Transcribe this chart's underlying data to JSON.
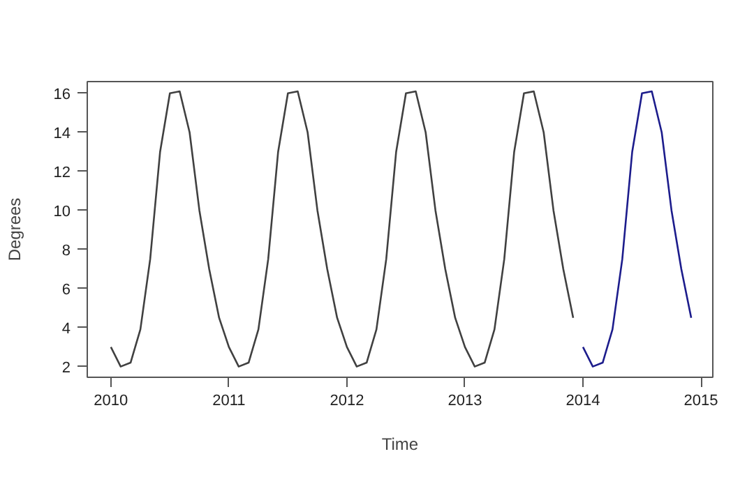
{
  "chart_data": {
    "type": "line",
    "xlabel": "Time",
    "ylabel": "Degrees",
    "xlim": [
      2009.8,
      2015.1
    ],
    "ylim": [
      1.45,
      16.6
    ],
    "xticks": [
      2010,
      2011,
      2012,
      2013,
      2014,
      2015
    ],
    "yticks": [
      2,
      4,
      6,
      8,
      10,
      12,
      14,
      16
    ],
    "line_style": "solid",
    "series": [
      {
        "color": "#404040",
        "x": [
          2010,
          2010.083,
          2010.167,
          2010.25,
          2010.333,
          2010.417,
          2010.5,
          2010.583,
          2010.667,
          2010.75,
          2010.833,
          2010.917,
          2011,
          2011.083,
          2011.167,
          2011.25,
          2011.333,
          2011.417,
          2011.5,
          2011.583,
          2011.667,
          2011.75,
          2011.833,
          2011.917,
          2012,
          2012.083,
          2012.167,
          2012.25,
          2012.333,
          2012.417,
          2012.5,
          2012.583,
          2012.667,
          2012.75,
          2012.833,
          2012.917,
          2013,
          2013.083,
          2013.167,
          2013.25,
          2013.333,
          2013.417,
          2013.5,
          2013.583,
          2013.667,
          2013.75,
          2013.833,
          2013.917
        ],
        "values": [
          3,
          2,
          2.2,
          3.9,
          7.5,
          13,
          16,
          16.1,
          14,
          10,
          7,
          4.5,
          3,
          2,
          2.2,
          3.9,
          7.5,
          13,
          16,
          16.1,
          14,
          10,
          7,
          4.5,
          3,
          2,
          2.2,
          3.9,
          7.5,
          13,
          16,
          16.1,
          14,
          10,
          7,
          4.5,
          3,
          2,
          2.2,
          3.9,
          7.5,
          13,
          16,
          16.1,
          14,
          10,
          7,
          4.5
        ]
      },
      {
        "color": "#1c1c8c",
        "x": [
          2014,
          2014.083,
          2014.167,
          2014.25,
          2014.333,
          2014.417,
          2014.5,
          2014.583,
          2014.667,
          2014.75,
          2014.833,
          2014.917
        ],
        "values": [
          3,
          2,
          2.2,
          3.9,
          7.5,
          13,
          16,
          16.1,
          14,
          10,
          7,
          4.5
        ]
      }
    ]
  }
}
